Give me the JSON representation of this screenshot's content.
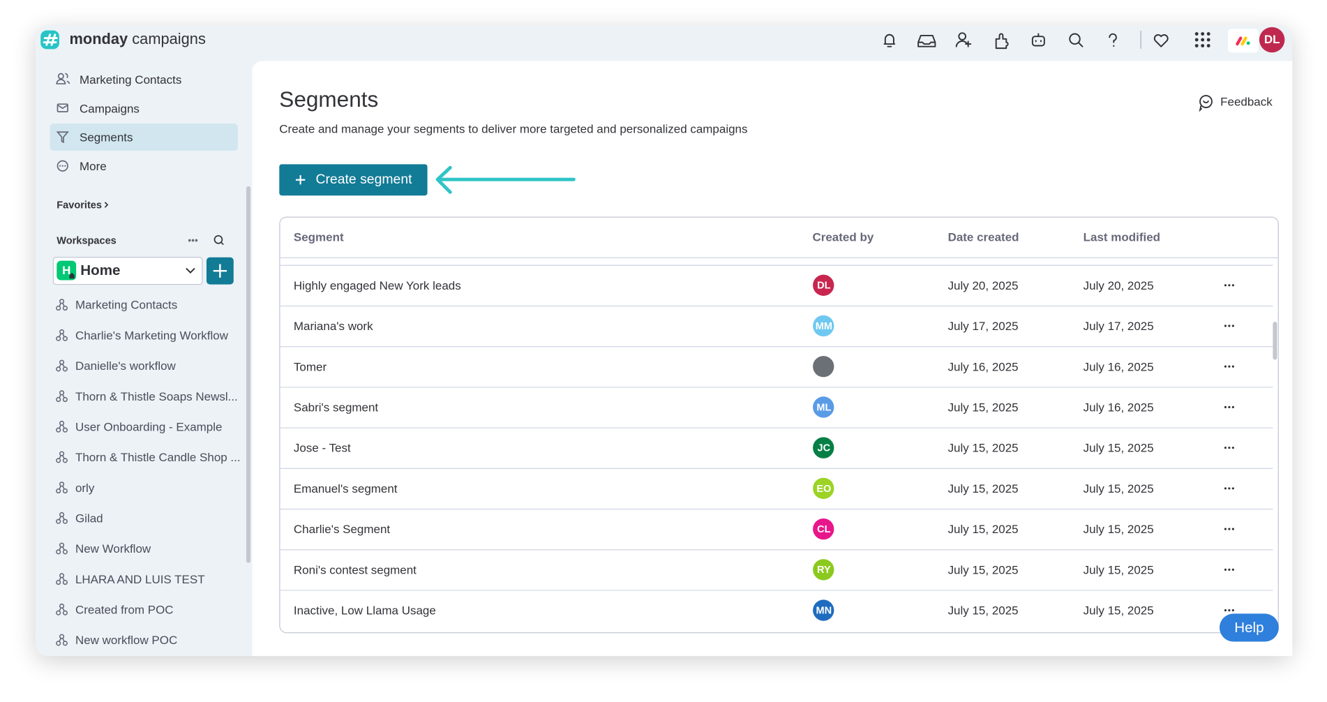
{
  "header": {
    "brand_bold": "monday",
    "brand": "campaigns",
    "avatar": "DL"
  },
  "sidebar": {
    "nav": [
      "Marketing Contacts",
      "Campaigns",
      "Segments",
      "More"
    ],
    "favorites": "Favorites",
    "workspaces": "Workspaces",
    "workspace": "Home",
    "workspace_badge": "H",
    "items": [
      "Marketing Contacts",
      "Charlie's Marketing Workflow",
      "Danielle's workflow",
      "Thorn & Thistle Soaps Newsl...",
      "User Onboarding - Example",
      "Thorn & Thistle Candle Shop ...",
      "orly",
      "Gilad",
      "New Workflow",
      "LHARA AND LUIS TEST",
      "Created from POC",
      "New workflow POC"
    ]
  },
  "page": {
    "title": "Segments",
    "subtitle": "Create and manage your segments to deliver more targeted and personalized campaigns",
    "feedback": "Feedback",
    "create_button": "Create segment",
    "help": "Help"
  },
  "table": {
    "columns": [
      "Segment",
      "Created by",
      "Date created",
      "Last modified"
    ],
    "rows": [
      {
        "segment": "Highly engaged New York leads",
        "initials": "DL",
        "color": "#c8264f",
        "date_created": "July 20, 2025",
        "last_modified": "July 20, 2025"
      },
      {
        "segment": "Mariana's work",
        "initials": "MM",
        "color": "#6fc8ef",
        "date_created": "July 17, 2025",
        "last_modified": "July 17, 2025"
      },
      {
        "segment": "Tomer",
        "color": "#6b6f76",
        "date_created": "July 16, 2025",
        "last_modified": "July 16, 2025"
      },
      {
        "segment": "Sabri's segment",
        "initials": "ML",
        "color": "#5a9be6",
        "date_created": "July 15, 2025",
        "last_modified": "July 16, 2025"
      },
      {
        "segment": "Jose - Test",
        "initials": "JC",
        "color": "#067f44",
        "date_created": "July 15, 2025",
        "last_modified": "July 15, 2025"
      },
      {
        "segment": "Emanuel's segment",
        "initials": "EO",
        "color": "#9cd326",
        "date_created": "July 15, 2025",
        "last_modified": "July 15, 2025"
      },
      {
        "segment": "Charlie's Segment",
        "initials": "CL",
        "color": "#e8168b",
        "date_created": "July 15, 2025",
        "last_modified": "July 15, 2025"
      },
      {
        "segment": "Roni's contest segment",
        "initials": "RY",
        "color": "#8cc91f",
        "date_created": "July 15, 2025",
        "last_modified": "July 15, 2025"
      },
      {
        "segment": "Inactive, Low Llama Usage",
        "initials": "MN",
        "color": "#1e6cbf",
        "date_created": "July 15, 2025",
        "last_modified": "July 15, 2025"
      }
    ]
  }
}
